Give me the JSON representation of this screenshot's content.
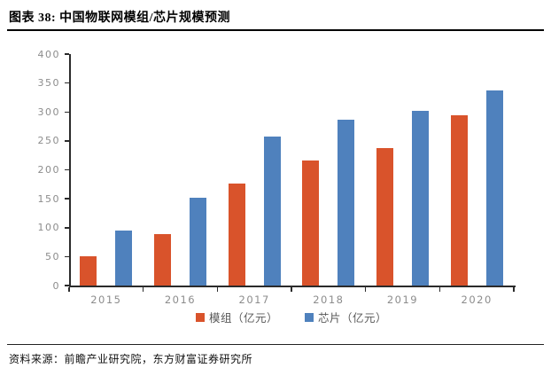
{
  "figure": {
    "title": "图表 38: 中国物联网模组/芯片规模预测",
    "source": "资料来源：前瞻产业研究院，东方财富证券研究所"
  },
  "chart_data": {
    "type": "bar",
    "title": "中国物联网模组/芯片规模预测",
    "categories": [
      "2015",
      "2016",
      "2017",
      "2018",
      "2019",
      "2020"
    ],
    "series": [
      {
        "name": "模组（亿元）",
        "color": "#D9532B",
        "values": [
          51,
          89,
          177,
          216,
          238,
          295
        ]
      },
      {
        "name": "芯片（亿元）",
        "color": "#4F81BD",
        "values": [
          95,
          151,
          258,
          286,
          302,
          337
        ]
      }
    ],
    "xlabel": "",
    "ylabel": "",
    "ylim": [
      0,
      400
    ],
    "ytick_interval": 50,
    "grid": false,
    "legend_position": "bottom"
  },
  "colors": {
    "module_bar": "#D9532B",
    "chip_bar": "#4F81BD",
    "axis": "#2B2B2B",
    "tick_label": "#8C8C8C",
    "legend_text": "#595959",
    "title_text": "#000000"
  }
}
